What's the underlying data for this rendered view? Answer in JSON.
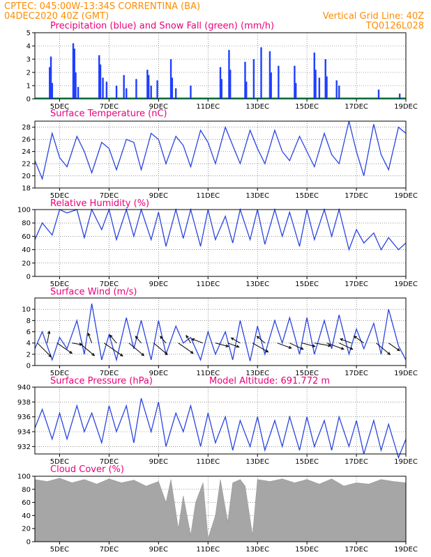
{
  "header": {
    "line1": "CPTEC:   045:00W-13:34S   CORRENTINA (BA)",
    "line2": "04DEC2020 40Z (GMT)",
    "grid_note": "Vertical Grid Line: 40Z",
    "code": "TQ0126L028"
  },
  "colors": {
    "header": "#ff8c00",
    "panel_title": "#e8007a",
    "precip": "#1f3fff",
    "snow": "#00b050",
    "line": "#2a44e0",
    "wind_arrow": "#000000",
    "cloud": "#a6a6a6"
  },
  "x_axis": {
    "days_span": [
      4.0,
      19.0
    ],
    "tick_labels": [
      "5DEC",
      "7DEC",
      "9DEC",
      "11DEC",
      "13DEC",
      "15DEC",
      "17DEC",
      "19DEC"
    ],
    "tick_days": [
      5,
      7,
      9,
      11,
      13,
      15,
      17,
      19
    ]
  },
  "chart_data": [
    {
      "id": "precip",
      "type": "bar",
      "title": "Precipitation (blue) and Snow Fall (green) (mm/h)",
      "ylim": [
        0,
        5
      ],
      "yticks": [
        0,
        1,
        2,
        3,
        4,
        5
      ],
      "series": [
        {
          "name": "Precipitation",
          "color": "#1f3fff",
          "points": [
            [
              4.6,
              2.4
            ],
            [
              4.65,
              3.2
            ],
            [
              4.7,
              1.2
            ],
            [
              5.55,
              4.2
            ],
            [
              5.6,
              3.8
            ],
            [
              5.65,
              2.0
            ],
            [
              5.75,
              0.9
            ],
            [
              6.6,
              3.3
            ],
            [
              6.65,
              2.6
            ],
            [
              6.75,
              1.6
            ],
            [
              6.9,
              1.3
            ],
            [
              7.3,
              1.0
            ],
            [
              7.6,
              1.8
            ],
            [
              7.7,
              0.8
            ],
            [
              8.1,
              1.5
            ],
            [
              8.55,
              2.2
            ],
            [
              8.6,
              1.8
            ],
            [
              8.7,
              1.0
            ],
            [
              8.95,
              1.4
            ],
            [
              9.5,
              3.0
            ],
            [
              9.55,
              1.6
            ],
            [
              9.7,
              0.8
            ],
            [
              10.3,
              1.0
            ],
            [
              11.5,
              2.4
            ],
            [
              11.55,
              1.5
            ],
            [
              11.85,
              3.7
            ],
            [
              11.9,
              2.2
            ],
            [
              12.5,
              2.8
            ],
            [
              12.55,
              1.3
            ],
            [
              12.85,
              3.0
            ],
            [
              13.15,
              3.9
            ],
            [
              13.5,
              3.6
            ],
            [
              13.55,
              2.0
            ],
            [
              13.85,
              2.5
            ],
            [
              14.5,
              2.5
            ],
            [
              14.55,
              1.2
            ],
            [
              15.3,
              3.5
            ],
            [
              15.35,
              2.2
            ],
            [
              15.5,
              1.6
            ],
            [
              15.75,
              3.0
            ],
            [
              15.8,
              1.7
            ],
            [
              16.2,
              1.4
            ],
            [
              16.3,
              1.0
            ],
            [
              17.9,
              0.7
            ],
            [
              18.75,
              0.4
            ]
          ]
        },
        {
          "name": "Snow Fall",
          "color": "#00b050",
          "points": [
            [
              4.0,
              0.05
            ],
            [
              19.0,
              0.05
            ]
          ]
        }
      ]
    },
    {
      "id": "temp",
      "type": "line",
      "title": "Surface Temperature (nC)",
      "ylim": [
        18,
        29
      ],
      "yticks": [
        18,
        20,
        22,
        24,
        26,
        28
      ],
      "x": [
        4.0,
        4.3,
        4.7,
        5.0,
        5.3,
        5.7,
        6.0,
        6.3,
        6.7,
        7.0,
        7.3,
        7.7,
        8.0,
        8.3,
        8.7,
        9.0,
        9.3,
        9.7,
        10.0,
        10.3,
        10.7,
        11.0,
        11.3,
        11.7,
        12.0,
        12.3,
        12.7,
        13.0,
        13.3,
        13.7,
        14.0,
        14.3,
        14.7,
        15.0,
        15.3,
        15.7,
        16.0,
        16.3,
        16.7,
        17.0,
        17.3,
        17.7,
        18.0,
        18.3,
        18.7,
        19.0
      ],
      "y": [
        22.5,
        19.5,
        27.0,
        23.0,
        21.5,
        26.5,
        24.0,
        20.5,
        25.5,
        24.5,
        21.0,
        26.0,
        25.5,
        21.0,
        27.0,
        26.0,
        22.0,
        26.5,
        25.0,
        21.5,
        27.5,
        25.5,
        22.0,
        28.0,
        25.0,
        22.0,
        27.5,
        24.5,
        22.0,
        27.5,
        24.0,
        22.5,
        26.5,
        24.0,
        21.5,
        27.0,
        23.5,
        22.0,
        29.0,
        24.0,
        20.0,
        28.5,
        23.5,
        21.0,
        28.0,
        27.0
      ]
    },
    {
      "id": "rh",
      "type": "line",
      "title": "Relative Humidity (%)",
      "ylim": [
        0,
        100
      ],
      "yticks": [
        0,
        20,
        40,
        60,
        80,
        100
      ],
      "x": [
        4.0,
        4.3,
        4.7,
        5.0,
        5.3,
        5.7,
        6.0,
        6.3,
        6.7,
        7.0,
        7.3,
        7.7,
        8.0,
        8.3,
        8.7,
        9.0,
        9.3,
        9.7,
        10.0,
        10.3,
        10.7,
        11.0,
        11.3,
        11.7,
        12.0,
        12.3,
        12.7,
        13.0,
        13.3,
        13.7,
        14.0,
        14.3,
        14.7,
        15.0,
        15.3,
        15.7,
        16.0,
        16.3,
        16.7,
        17.0,
        17.3,
        17.7,
        18.0,
        18.3,
        18.7,
        19.0
      ],
      "y": [
        55,
        80,
        62,
        100,
        95,
        100,
        58,
        100,
        70,
        100,
        55,
        100,
        60,
        100,
        55,
        96,
        45,
        100,
        57,
        100,
        45,
        100,
        55,
        90,
        50,
        100,
        55,
        100,
        48,
        100,
        60,
        96,
        45,
        100,
        55,
        100,
        60,
        100,
        40,
        70,
        50,
        65,
        40,
        58,
        40,
        50
      ]
    },
    {
      "id": "wind",
      "type": "line",
      "title": "Surface Wind (m/s)",
      "ylim": [
        0,
        12
      ],
      "yticks": [
        0,
        2,
        4,
        6,
        8,
        10
      ],
      "x": [
        4.0,
        4.3,
        4.7,
        5.0,
        5.3,
        5.7,
        6.0,
        6.3,
        6.7,
        7.0,
        7.3,
        7.7,
        8.0,
        8.3,
        8.7,
        9.0,
        9.3,
        9.7,
        10.0,
        10.3,
        10.7,
        11.0,
        11.3,
        11.7,
        12.0,
        12.3,
        12.7,
        13.0,
        13.3,
        13.7,
        14.0,
        14.3,
        14.7,
        15.0,
        15.3,
        15.7,
        16.0,
        16.3,
        16.7,
        17.0,
        17.3,
        17.7,
        18.0,
        18.3,
        18.7,
        19.0
      ],
      "y": [
        3.0,
        6.0,
        1.0,
        5.0,
        3.0,
        8.0,
        2.0,
        11.0,
        1.0,
        5.5,
        1.0,
        8.5,
        3.0,
        8.0,
        1.0,
        8.0,
        2.0,
        7.0,
        4.0,
        5.0,
        1.0,
        6.0,
        2.0,
        6.0,
        1.0,
        8.0,
        0.8,
        7.0,
        2.0,
        8.0,
        4.0,
        8.5,
        2.0,
        8.5,
        2.0,
        8.0,
        3.0,
        9.0,
        2.0,
        6.5,
        3.0,
        7.5,
        2.0,
        10.0,
        3.5,
        1.0
      ]
    },
    {
      "id": "pressure",
      "type": "line",
      "title": "Surface Pressure (hPa)",
      "subtitle": "Model Altitude: 691.772 m",
      "ylim": [
        931,
        940
      ],
      "yticks": [
        932,
        934,
        936,
        938,
        940
      ],
      "x": [
        4.0,
        4.3,
        4.7,
        5.0,
        5.3,
        5.7,
        6.0,
        6.3,
        6.7,
        7.0,
        7.3,
        7.7,
        8.0,
        8.3,
        8.7,
        9.0,
        9.3,
        9.7,
        10.0,
        10.3,
        10.7,
        11.0,
        11.3,
        11.7,
        12.0,
        12.3,
        12.7,
        13.0,
        13.3,
        13.7,
        14.0,
        14.3,
        14.7,
        15.0,
        15.3,
        15.7,
        16.0,
        16.3,
        16.7,
        17.0,
        17.3,
        17.7,
        18.0,
        18.3,
        18.7,
        19.0
      ],
      "y": [
        934.5,
        937.0,
        933.0,
        936.5,
        933.0,
        937.5,
        934.0,
        936.5,
        932.5,
        937.5,
        934.0,
        937.5,
        932.5,
        938.5,
        934.0,
        938.0,
        932.0,
        936.5,
        934.0,
        937.5,
        932.0,
        936.5,
        932.5,
        936.0,
        931.5,
        935.5,
        932.0,
        936.0,
        931.5,
        935.5,
        932.0,
        936.0,
        931.5,
        936.0,
        932.0,
        935.5,
        931.5,
        936.0,
        932.0,
        935.5,
        931.0,
        935.5,
        931.5,
        935.0,
        930.5,
        933.0
      ]
    },
    {
      "id": "cloud",
      "type": "area",
      "title": "Cloud Cover (%)",
      "ylim": [
        0,
        100
      ],
      "yticks": [
        0,
        20,
        40,
        60,
        80,
        100
      ],
      "x": [
        4.0,
        4.5,
        5.0,
        5.5,
        6.0,
        6.5,
        7.0,
        7.5,
        8.0,
        8.5,
        9.0,
        9.3,
        9.5,
        9.8,
        10.0,
        10.3,
        10.5,
        10.8,
        11.0,
        11.3,
        11.5,
        11.8,
        12.0,
        12.3,
        12.5,
        12.8,
        13.0,
        13.5,
        14.0,
        14.5,
        15.0,
        15.5,
        16.0,
        16.5,
        17.0,
        17.5,
        18.0,
        18.5,
        19.0
      ],
      "y": [
        95,
        92,
        97,
        90,
        95,
        88,
        96,
        90,
        94,
        85,
        92,
        60,
        95,
        20,
        70,
        10,
        60,
        90,
        5,
        40,
        95,
        30,
        90,
        95,
        85,
        10,
        95,
        92,
        96,
        90,
        95,
        88,
        96,
        85,
        90,
        88,
        95,
        92,
        90
      ]
    }
  ],
  "wind_arrows": [
    [
      4.1,
      -45,
      1.0
    ],
    [
      4.5,
      80,
      0.5
    ],
    [
      4.9,
      -35,
      0.9
    ],
    [
      5.5,
      -10,
      0.4
    ],
    [
      5.8,
      -40,
      1.0
    ],
    [
      6.3,
      110,
      0.4
    ],
    [
      6.8,
      -35,
      1.2
    ],
    [
      7.3,
      130,
      0.4
    ],
    [
      7.8,
      -40,
      1.0
    ],
    [
      8.3,
      130,
      0.3
    ],
    [
      8.8,
      -40,
      0.9
    ],
    [
      9.3,
      130,
      0.3
    ],
    [
      9.8,
      -35,
      0.9
    ],
    [
      10.3,
      120,
      0.3
    ],
    [
      10.8,
      160,
      0.5
    ],
    [
      11.3,
      -15,
      0.6
    ],
    [
      11.8,
      -20,
      0.5
    ],
    [
      12.3,
      150,
      0.4
    ],
    [
      12.8,
      -30,
      0.9
    ],
    [
      13.3,
      140,
      0.4
    ],
    [
      13.8,
      -20,
      0.7
    ],
    [
      14.3,
      -25,
      0.7
    ],
    [
      14.8,
      -15,
      0.6
    ],
    [
      15.3,
      -10,
      0.8
    ],
    [
      15.8,
      -20,
      0.9
    ],
    [
      16.3,
      -25,
      0.7
    ],
    [
      16.8,
      160,
      0.5
    ],
    [
      17.3,
      145,
      0.5
    ],
    [
      17.8,
      -40,
      0.9
    ],
    [
      18.3,
      -35,
      0.6
    ]
  ]
}
